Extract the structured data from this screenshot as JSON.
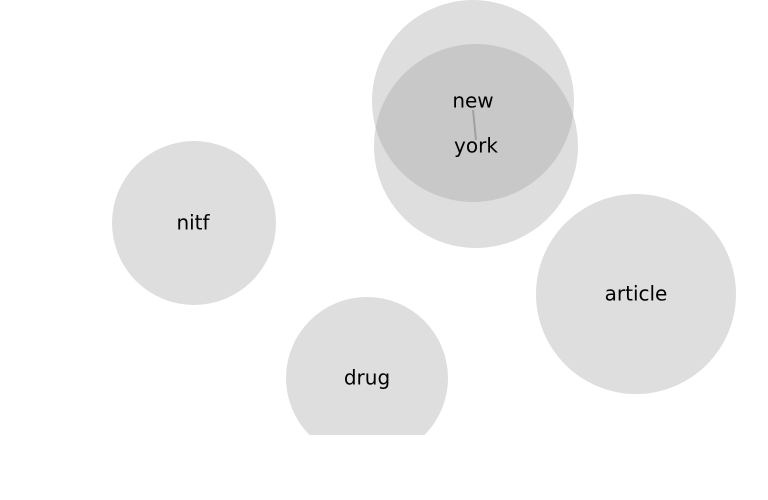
{
  "diagram": {
    "type": "bubble-graph",
    "colors": {
      "bubble_fill": "#dedede",
      "overlap_fill": "#c8c8c8",
      "edge": "#a0a0a0",
      "label": "#000000"
    },
    "nodes": [
      {
        "id": "new",
        "label": "new"
      },
      {
        "id": "york",
        "label": "york"
      },
      {
        "id": "nitf",
        "label": "nitf"
      },
      {
        "id": "article",
        "label": "article"
      },
      {
        "id": "drug",
        "label": "drug"
      }
    ],
    "edges": [
      {
        "from": "new",
        "to": "york"
      }
    ]
  }
}
